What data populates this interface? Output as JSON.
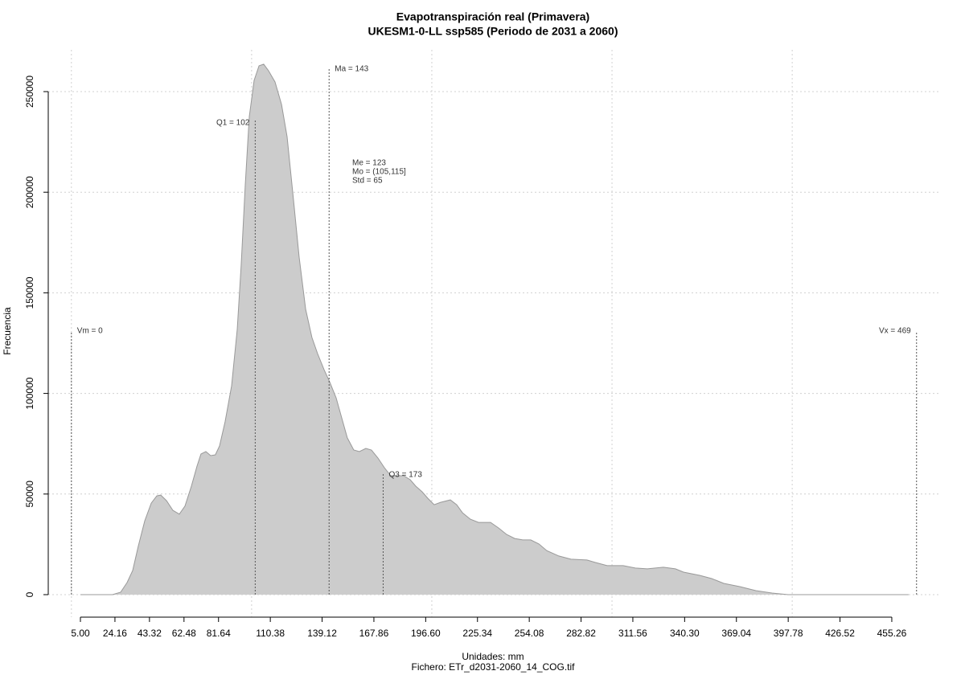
{
  "chart_data": {
    "type": "area",
    "title": "Evapotranspiración real (Primavera)",
    "subtitle": "UKESM1-0-LL ssp585 (Periodo de 2031 a 2060)",
    "xlabel": "Unidades: mm",
    "caption": "Fichero: ETr_d2031-2060_14_COG.tif",
    "ylabel": "Frecuencia",
    "color": "#cccccc",
    "line_color": "#999999",
    "x": [
      5.0,
      22.8,
      27.3,
      30.9,
      34.0,
      37.1,
      40.7,
      44.3,
      47.4,
      49.6,
      52.8,
      56.3,
      59.9,
      63.0,
      66.6,
      69.7,
      71.9,
      74.6,
      77.3,
      79.9,
      82.2,
      85.3,
      88.9,
      92.0,
      94.2,
      96.5,
      98.7,
      101.4,
      104.1,
      106.7,
      109.4,
      113.0,
      116.6,
      119.7,
      123.3,
      126.4,
      130.0,
      133.5,
      136.6,
      140.2,
      143.3,
      146.9,
      150.0,
      153.1,
      156.7,
      159.8,
      163.4,
      166.5,
      170.1,
      173.7,
      177.2,
      180.8,
      184.4,
      188.0,
      191.1,
      194.6,
      197.8,
      201.3,
      204.9,
      210.3,
      213.8,
      217.0,
      221.4,
      225.9,
      232.6,
      237.1,
      241.5,
      246.0,
      250.5,
      254.9,
      259.4,
      263.8,
      270.5,
      277.2,
      286.1,
      290.6,
      297.3,
      301.7,
      306.2,
      312.9,
      319.6,
      328.5,
      335.2,
      339.7,
      348.6,
      355.3,
      362.0,
      370.9,
      379.8,
      388.8,
      397.7,
      406.6,
      464.6
    ],
    "values": [
      0,
      0,
      1200,
      6000,
      12000,
      24000,
      36700,
      45500,
      49100,
      49500,
      46700,
      41900,
      40000,
      44000,
      53900,
      63900,
      69900,
      71100,
      69100,
      69500,
      73900,
      85900,
      103800,
      131800,
      163700,
      203700,
      237600,
      255600,
      262800,
      263600,
      260400,
      254800,
      243600,
      227600,
      195700,
      167700,
      141800,
      127800,
      119800,
      111800,
      105800,
      97800,
      87900,
      77900,
      71900,
      71100,
      72700,
      71900,
      67900,
      63100,
      59100,
      59100,
      59100,
      57100,
      53900,
      51100,
      47900,
      44700,
      45900,
      47100,
      44700,
      40700,
      37500,
      35900,
      35900,
      33100,
      29900,
      27900,
      27200,
      27200,
      25200,
      21900,
      19200,
      17600,
      17200,
      16000,
      14400,
      14400,
      14400,
      13200,
      12800,
      13600,
      12800,
      11200,
      9600,
      8000,
      5600,
      4000,
      2000,
      800,
      0,
      0,
      0
    ],
    "xlim": [
      -12.85,
      482.5
    ],
    "ylim": [
      -11182,
      270767
    ],
    "xticks": [
      {
        "value": 5,
        "label": "5.00"
      },
      24.16,
      43.32,
      62.48,
      81.64,
      110.38,
      139.12,
      167.86,
      {
        "value": 196.6,
        "label": "196.60"
      },
      225.34,
      254.08,
      282.82,
      311.56,
      {
        "value": 340.3,
        "label": "340.30"
      },
      369.04,
      397.78,
      426.52,
      455.26
    ],
    "yticks": [
      0,
      50000,
      100000,
      150000,
      200000,
      250000
    ],
    "xgrid": [
      0,
      100,
      200,
      300,
      400
    ],
    "grid": true,
    "markers": [
      {
        "label": "Vm = 0",
        "value": 0
      },
      {
        "label": "Q1 = 102",
        "value": 102
      },
      {
        "label": "Ma = 143",
        "value": 143
      },
      {
        "label": "Q3 = 173",
        "value": 173
      },
      {
        "label": "Vx = 469",
        "value": 469
      }
    ],
    "stats": [
      "Me = 123",
      "Mo = (105,115]",
      "Std = 65"
    ]
  }
}
